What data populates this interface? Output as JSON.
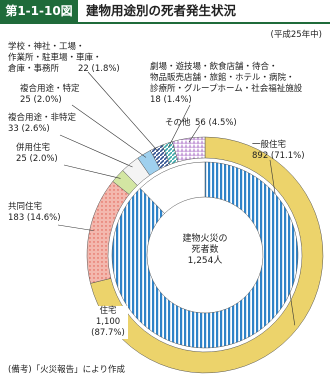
{
  "chart_data": {
    "type": "donut",
    "figure_number": "第1-1-10図",
    "title": "建物用途別の死者発生状況",
    "subtitle": "(平成25年中)",
    "center_text": "建物火災の\n死者数\n1,254人",
    "note": "(備考)「火災報告」により作成",
    "rings": [
      {
        "categories": [
          "一般住宅",
          "共同住宅",
          "併用住宅",
          "複合用途・非特定",
          "複合用途・特定",
          "学校・神社・工場・\n作業所・駐車場・車庫・\n倉庫・事務所",
          "劇場・遊技場・飲食店舗・待合・\n物品販売店舗・旅館・ホテル・病院・\n診療所・グループホーム・社会福祉施設",
          "その他"
        ],
        "values": [
          892,
          183,
          25,
          33,
          25,
          22,
          18,
          56
        ],
        "value_labels": [
          "892 (71.1%)",
          "183 (14.6%)",
          "25 (2.0%)",
          "33 (2.6%)",
          "25 (2.0%)",
          "22 (1.8%)",
          "18 (1.4%)",
          "56 (4.5%)"
        ],
        "colors": [
          "#ecd36b",
          "#f3b8ae",
          "#d3e6a3",
          "#f4f4f4",
          "#9fd0ee",
          "#2f4f8f",
          "#3aa6a8",
          "#c9a3db"
        ]
      },
      {
        "categories": [
          "住宅",
          null
        ],
        "values": [
          1100,
          154
        ],
        "value_labels": [
          "1,100\n(87.7%)",
          null
        ],
        "colors": [
          "#2f83c8",
          "#ffffff"
        ]
      }
    ]
  }
}
